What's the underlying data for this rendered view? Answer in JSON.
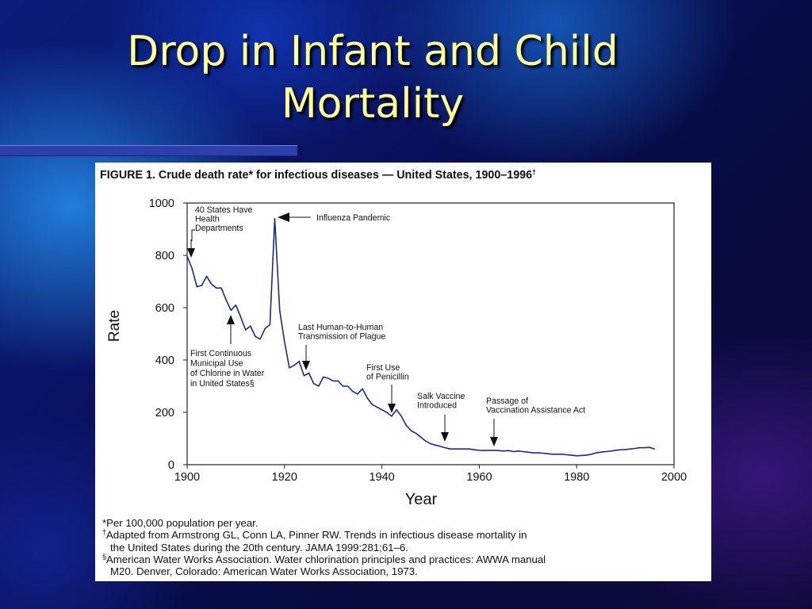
{
  "slide": {
    "title_line1": "Drop in Infant and Child",
    "title_line2": "Mortality"
  },
  "figure": {
    "caption": "FIGURE 1. Crude death rate* for infectious diseases — United States, 1900–1996",
    "caption_mark": "†",
    "footnotes": [
      {
        "mark": "*",
        "line1": "Per 100,000 population per year.",
        "line2": ""
      },
      {
        "mark": "†",
        "line1": "Adapted from Armstrong GL, Conn LA, Pinner RW. Trends in infectious disease mortality in",
        "line2": "the United States during the 20th century. JAMA 1999:281;61–6."
      },
      {
        "mark": "§",
        "line1": "American Water Works Association. Water chlorination principles and practices: AWWA manual",
        "line2": "M20. Denver, Colorado: American Water Works Association, 1973."
      }
    ]
  },
  "chart_data": {
    "type": "line",
    "title": "FIGURE 1. Crude death rate* for infectious diseases — United States, 1900–1996†",
    "xlabel": "Year",
    "ylabel": "Rate",
    "xlim": [
      1900,
      2000
    ],
    "ylim": [
      0,
      1000
    ],
    "x_ticks": [
      "1900",
      "1920",
      "1940",
      "1960",
      "1980",
      "2000"
    ],
    "y_ticks": [
      "0",
      "200",
      "400",
      "600",
      "800",
      "1000"
    ],
    "grid": false,
    "color": "#1a2a8a",
    "series": [
      {
        "x": [
          1900,
          1901,
          1902,
          1903,
          1904,
          1905,
          1906,
          1907,
          1908,
          1909,
          1910,
          1911,
          1912,
          1913,
          1914,
          1915,
          1916,
          1917,
          1918,
          1919,
          1920,
          1921,
          1922,
          1923,
          1924,
          1925,
          1926,
          1927,
          1928,
          1929,
          1930,
          1931,
          1932,
          1933,
          1934,
          1935,
          1936,
          1937,
          1938,
          1939,
          1940,
          1941,
          1942,
          1943,
          1944,
          1945,
          1946,
          1947,
          1948,
          1949,
          1950,
          1951,
          1952,
          1953,
          1954,
          1955,
          1956,
          1957,
          1958,
          1959,
          1960,
          1961,
          1962,
          1963,
          1964,
          1965,
          1966,
          1967,
          1968,
          1969,
          1970,
          1971,
          1972,
          1973,
          1974,
          1975,
          1976,
          1977,
          1978,
          1979,
          1980,
          1981,
          1982,
          1983,
          1984,
          1985,
          1986,
          1987,
          1988,
          1989,
          1990,
          1991,
          1992,
          1993,
          1994,
          1995,
          1996
        ],
        "y": [
          797,
          750,
          680,
          685,
          720,
          690,
          675,
          675,
          630,
          590,
          610,
          565,
          515,
          530,
          490,
          480,
          520,
          535,
          940,
          590,
          470,
          370,
          380,
          395,
          340,
          350,
          310,
          300,
          335,
          330,
          320,
          320,
          300,
          300,
          280,
          270,
          290,
          255,
          230,
          220,
          210,
          200,
          185,
          210,
          185,
          150,
          130,
          120,
          105,
          90,
          80,
          75,
          70,
          65,
          60,
          60,
          60,
          60,
          60,
          57,
          55,
          54,
          55,
          55,
          54,
          52,
          54,
          50,
          52,
          50,
          48,
          45,
          45,
          44,
          42,
          40,
          40,
          40,
          38,
          36,
          34,
          35,
          36,
          40,
          45,
          48,
          50,
          52,
          55,
          57,
          58,
          60,
          62,
          65,
          65,
          66,
          60
        ]
      }
    ],
    "annotations": [
      {
        "text": "40 States Have Health Departments",
        "x": 1900,
        "y": 800
      },
      {
        "text": "Influenza Pandemic",
        "x": 1918,
        "y": 940
      },
      {
        "text": "First Continuous Municipal Use of Chlorine in Water in United States§",
        "x": 1908,
        "y": 570
      },
      {
        "text": "Last Human-to-Human Transmission of Plague",
        "x": 1924,
        "y": 350
      },
      {
        "text": "First Use of Penicillin",
        "x": 1942,
        "y": 195
      },
      {
        "text": "Salk Vaccine Introduced",
        "x": 1954,
        "y": 95
      },
      {
        "text": "Passage of Vaccination Assistance Act",
        "x": 1963,
        "y": 75
      }
    ],
    "annotation_lines": {
      "states": [
        "40 States Have",
        "Health",
        "Departments"
      ],
      "flu": [
        "Influenza Pandemic"
      ],
      "chlorine": [
        "First Continuous",
        "Municipal Use",
        "of Chlorine in Water",
        "in United States§"
      ],
      "plague": [
        "Last Human-to-Human",
        "Transmission of Plague"
      ],
      "penicillin": [
        "First Use",
        "of Penicillin"
      ],
      "salk": [
        "Salk Vaccine",
        "Introduced"
      ],
      "vaccact": [
        "Passage of",
        "Vaccination Assistance Act"
      ]
    }
  }
}
